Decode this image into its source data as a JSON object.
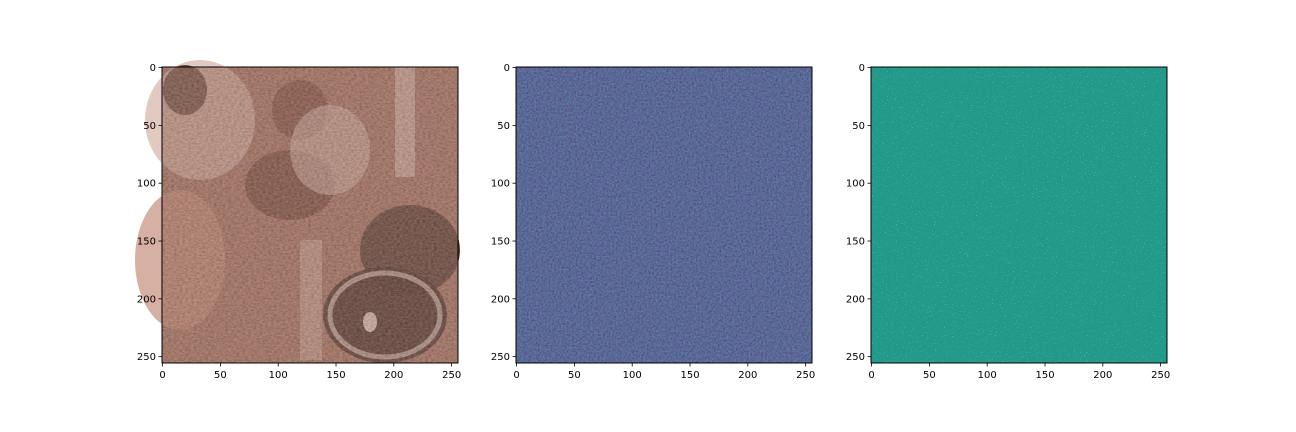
{
  "chart_data": [
    {
      "type": "heatmap",
      "title": "",
      "xlabel": "",
      "ylabel": "",
      "xlim": [
        0,
        255
      ],
      "ylim": [
        255,
        0
      ],
      "xticks": [
        0,
        50,
        100,
        150,
        200,
        250
      ],
      "yticks": [
        0,
        50,
        100,
        150,
        200,
        250
      ],
      "grid": false,
      "colormap": "rgb-photo (copper/brown tones)",
      "palette": [
        "#2a120b",
        "#6b3a2c",
        "#a9705e",
        "#d4a596",
        "#f0dcd4"
      ]
    },
    {
      "type": "heatmap",
      "title": "",
      "xlabel": "",
      "ylabel": "",
      "xlim": [
        0,
        255
      ],
      "ylim": [
        255,
        0
      ],
      "xticks": [
        0,
        50,
        100,
        150,
        200,
        250
      ],
      "yticks": [
        0,
        50,
        100,
        150,
        200,
        250
      ],
      "grid": false,
      "colormap": "viridis (low values, mostly dark purple)",
      "palette": [
        "#440154",
        "#46196a",
        "#3e4a89",
        "#31688e",
        "#26828e"
      ]
    },
    {
      "type": "heatmap",
      "title": "",
      "xlabel": "",
      "ylabel": "",
      "xlim": [
        0,
        255
      ],
      "ylim": [
        255,
        0
      ],
      "xticks": [
        0,
        50,
        100,
        150,
        200,
        250
      ],
      "yticks": [
        0,
        50,
        100,
        150,
        200,
        250
      ],
      "grid": false,
      "colormap": "viridis (centered, mostly teal)",
      "palette": [
        "#21918c",
        "#1f9a8a",
        "#2a788e",
        "#3bbb75",
        "#7ad151"
      ]
    }
  ]
}
